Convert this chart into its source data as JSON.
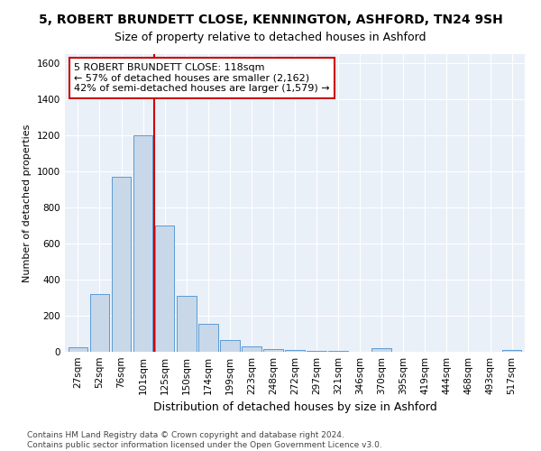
{
  "title": "5, ROBERT BRUNDETT CLOSE, KENNINGTON, ASHFORD, TN24 9SH",
  "subtitle": "Size of property relative to detached houses in Ashford",
  "xlabel": "Distribution of detached houses by size in Ashford",
  "ylabel": "Number of detached properties",
  "categories": [
    "27sqm",
    "52sqm",
    "76sqm",
    "101sqm",
    "125sqm",
    "150sqm",
    "174sqm",
    "199sqm",
    "223sqm",
    "248sqm",
    "272sqm",
    "297sqm",
    "321sqm",
    "346sqm",
    "370sqm",
    "395sqm",
    "419sqm",
    "444sqm",
    "468sqm",
    "493sqm",
    "517sqm"
  ],
  "values": [
    25,
    320,
    970,
    1200,
    700,
    310,
    155,
    65,
    30,
    15,
    10,
    5,
    3,
    2,
    18,
    2,
    2,
    2,
    2,
    2,
    10
  ],
  "bar_color": "#c8d8e8",
  "bar_edge_color": "#5b9bd5",
  "highlight_line_color": "#cc0000",
  "annotation_line1": "5 ROBERT BRUNDETT CLOSE: 118sqm",
  "annotation_line2": "← 57% of detached houses are smaller (2,162)",
  "annotation_line3": "42% of semi-detached houses are larger (1,579) →",
  "annotation_box_color": "#ffffff",
  "annotation_box_edge": "#cc0000",
  "ylim": [
    0,
    1650
  ],
  "yticks": [
    0,
    200,
    400,
    600,
    800,
    1000,
    1200,
    1400,
    1600
  ],
  "footer_line1": "Contains HM Land Registry data © Crown copyright and database right 2024.",
  "footer_line2": "Contains public sector information licensed under the Open Government Licence v3.0.",
  "bg_color": "#ffffff",
  "plot_bg_color": "#eaf0f8",
  "grid_color": "#ffffff",
  "title_fontsize": 10,
  "subtitle_fontsize": 9,
  "ylabel_fontsize": 8,
  "xlabel_fontsize": 9,
  "tick_fontsize": 7.5,
  "footer_fontsize": 6.5
}
